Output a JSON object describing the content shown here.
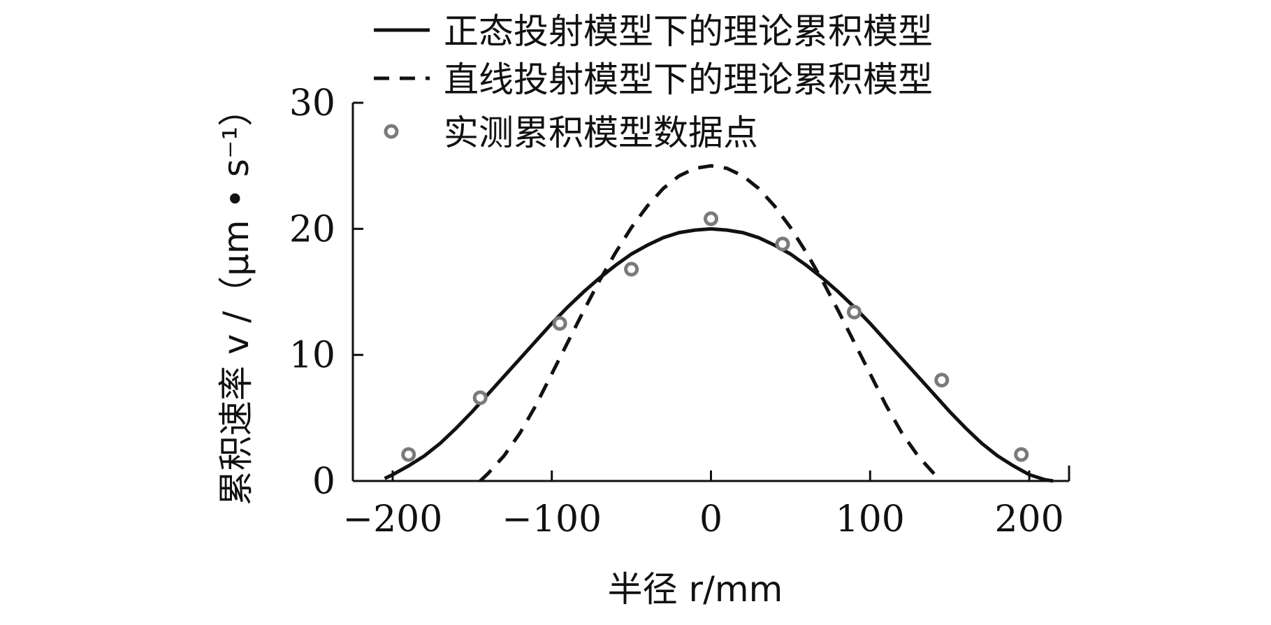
{
  "chart_data": {
    "type": "line",
    "title": "",
    "xlabel": "半径 r/mm",
    "ylabel": "累积速率 v /（μm • s⁻¹）",
    "xlim": [
      -225,
      225
    ],
    "ylim": [
      0,
      30
    ],
    "x_ticks": [
      -200,
      -100,
      0,
      100,
      200
    ],
    "x_tick_labels": [
      "−200",
      "−100",
      "0",
      "100",
      "200"
    ],
    "y_ticks": [
      0,
      10,
      20,
      30
    ],
    "y_tick_labels": [
      "0",
      "10",
      "20",
      "30"
    ],
    "grid": false,
    "legend_position": "top",
    "series": [
      {
        "name": "正态投射模型下的理论累积模型",
        "style": "solid",
        "color": "#111111",
        "x": [
          -205,
          -200,
          -190,
          -180,
          -170,
          -160,
          -150,
          -140,
          -130,
          -120,
          -110,
          -100,
          -90,
          -80,
          -70,
          -60,
          -50,
          -40,
          -30,
          -20,
          -10,
          0,
          10,
          20,
          30,
          40,
          50,
          60,
          70,
          80,
          90,
          100,
          110,
          120,
          130,
          140,
          150,
          160,
          170,
          180,
          190,
          200,
          210,
          215
        ],
        "y": [
          0.2,
          0.5,
          1.2,
          2.0,
          3.0,
          4.2,
          5.5,
          6.9,
          8.3,
          9.7,
          11.1,
          12.5,
          13.8,
          15.0,
          16.1,
          17.1,
          18.0,
          18.7,
          19.3,
          19.7,
          19.9,
          20.0,
          19.9,
          19.7,
          19.3,
          18.7,
          18.0,
          17.1,
          16.1,
          15.0,
          13.8,
          12.5,
          11.1,
          9.7,
          8.3,
          6.9,
          5.5,
          4.2,
          3.0,
          2.0,
          1.2,
          0.5,
          0.1,
          0.0
        ]
      },
      {
        "name": "直线投射模型下的理论累积模型",
        "style": "dashed",
        "color": "#111111",
        "x": [
          -145,
          -140,
          -130,
          -120,
          -110,
          -100,
          -90,
          -80,
          -70,
          -60,
          -50,
          -40,
          -30,
          -20,
          -10,
          0,
          10,
          20,
          30,
          40,
          50,
          60,
          70,
          80,
          90,
          100,
          110,
          120,
          130,
          140,
          145
        ],
        "y": [
          0.0,
          0.6,
          2.0,
          3.8,
          6.0,
          8.5,
          11.0,
          13.5,
          15.9,
          18.1,
          20.1,
          21.8,
          23.2,
          24.2,
          24.8,
          25.0,
          24.8,
          24.2,
          23.2,
          21.8,
          20.1,
          18.1,
          15.9,
          13.5,
          11.0,
          8.5,
          6.0,
          3.8,
          2.0,
          0.6,
          0.0
        ]
      },
      {
        "name": "实测累积模型数据点",
        "style": "markers",
        "color": "#7a7a7a",
        "x": [
          -190,
          -145,
          -95,
          -50,
          0,
          45,
          90,
          145,
          195
        ],
        "y": [
          2.1,
          6.6,
          12.5,
          16.8,
          20.8,
          18.8,
          13.4,
          8.0,
          2.1
        ]
      }
    ]
  }
}
